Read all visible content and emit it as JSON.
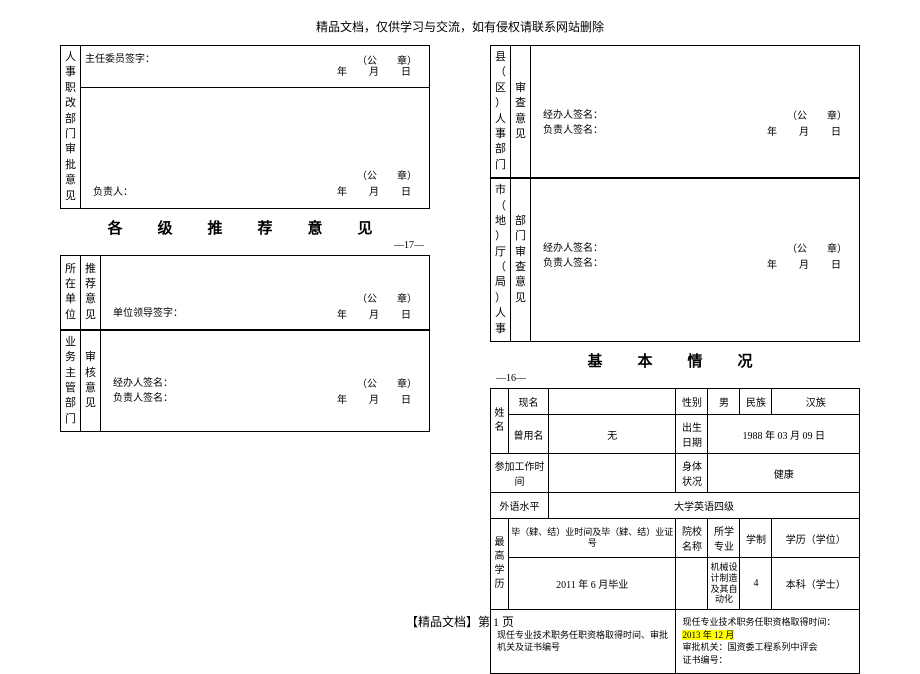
{
  "header": "精品文档，仅供学习与交流，如有侵权请联系网站删除",
  "footer": "【精品文档】第 1 页",
  "seal_text": "（公　　章）",
  "date_text": "年　月　日",
  "left": {
    "block1": {
      "side": "人事职改部门审批意见",
      "top_sig": "主任委员签字：",
      "bottom_sig": "负责人：",
      "bottom_date_label": "年　月　日"
    },
    "section_title": "各　级　推　荐　意　见",
    "page_num": "—17—",
    "block2": {
      "side": "所在单位",
      "inner": "推荐意见",
      "sig": "单位领导签字："
    },
    "block3": {
      "side": "业务主管部门",
      "inner": "审核意见",
      "sig1": "经办人签名：",
      "sig2": "负责人签名："
    }
  },
  "right": {
    "block1": {
      "side": "县（区）人事部门",
      "inner": "审查意见",
      "sig1": "经办人签名：",
      "sig2": "负责人签名："
    },
    "block2": {
      "side": "市（地）厅（局）人事",
      "inner": "部门审查意见",
      "sig1": "经办人签名：",
      "sig2": "负责人签名："
    },
    "section_title": "基　本　情　况",
    "page_num": "—16—",
    "info": {
      "name_label": "姓名",
      "current_name": "现名",
      "current_name_val": "",
      "gender_label": "性别",
      "gender_val": "男",
      "ethnic_label": "民族",
      "ethnic_val": "汉族",
      "former_name": "曾用名",
      "former_name_val": "无",
      "dob_label": "出生日期",
      "dob_val": "1988 年 03 月 09 日",
      "work_date_label": "参加工作时间",
      "work_date_val": "",
      "health_label": "身体状况",
      "health_val": "健康",
      "lang_label": "外语水平",
      "lang_val": "大学英语四级",
      "edu_side": "最高学历",
      "edu_r1": "毕（肄、结）业时间及毕（肄、结）业证号",
      "edu_school": "院校名称",
      "edu_major": "所学专业",
      "edu_system": "学制",
      "edu_degree": "学历（学位）",
      "edu_r2_time": "2011 年 6 月毕业",
      "edu_r2_school": "",
      "edu_r2_major": "机械设计制造及其自动化",
      "edu_r2_system": "4",
      "edu_r2_degree": "本科（学士）",
      "bottom_left": "现任专业技术职务任职资格取得时间、审批机关及证书编号",
      "bottom_right_1": "现任专业技术职务任职资格取得时间：",
      "bottom_right_1_hl": "2013 年 12 月",
      "bottom_right_2": "审批机关：国资委工程系列中评会",
      "bottom_right_3": "证书编号："
    }
  }
}
